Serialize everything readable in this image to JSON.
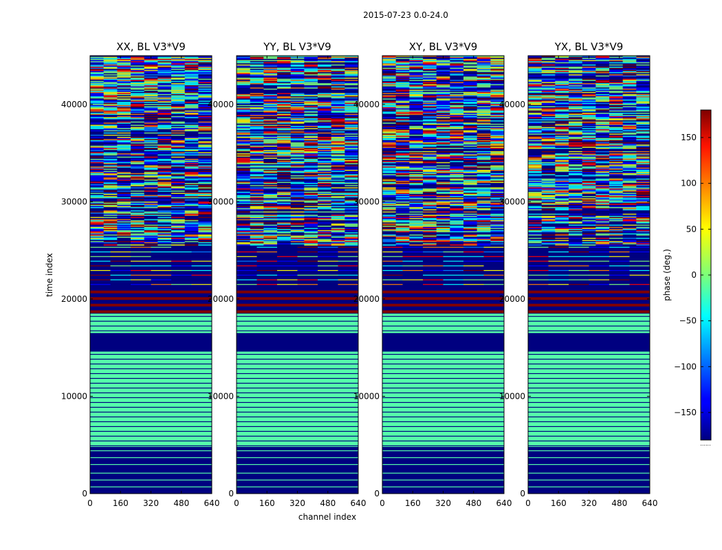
{
  "chart_data": {
    "type": "heatmap",
    "suptitle": "2015-07-23 0.0-24.0",
    "xlabel": "channel index",
    "ylabel": "time index",
    "xlim": [
      0,
      640
    ],
    "ylim": [
      0,
      45000
    ],
    "x_ticks": [
      0,
      160,
      320,
      480,
      640
    ],
    "y_ticks": [
      0,
      10000,
      20000,
      30000,
      40000
    ],
    "panels": [
      {
        "title": "XX, BL V3*V9",
        "hot_rows_start": 0
      },
      {
        "title": "YY, BL V3*V9",
        "hot_rows_start": 0
      },
      {
        "title": "XY, BL V3*V9",
        "hot_rows_start": 0
      },
      {
        "title": "YX, BL V3*V9",
        "hot_rows_start": 0
      }
    ],
    "bands": [
      {
        "from": 0,
        "to": 2500,
        "phase": -180,
        "stripe": -15
      },
      {
        "from": 2500,
        "to": 4800,
        "phase": -180,
        "stripe": -15
      },
      {
        "from": 4800,
        "to": 14600,
        "phase": -15,
        "stripe": -180
      },
      {
        "from": 14600,
        "to": 16500,
        "phase": -180,
        "stripe": -180
      },
      {
        "from": 16500,
        "to": 18500,
        "phase": -15,
        "stripe": -180
      },
      {
        "from": 18500,
        "to": 21200,
        "phase": -180,
        "stripe": 180
      },
      {
        "from": 21200,
        "to": 25500,
        "phase": -180,
        "stripe": "noise"
      },
      {
        "from": 25500,
        "to": 45000,
        "phase": "noise",
        "stripe": -180
      }
    ],
    "colorbar": {
      "label": "phase (deg.)",
      "range": [
        -180,
        180
      ],
      "ticks": [
        -150,
        -100,
        -50,
        0,
        50,
        100,
        150
      ],
      "colormap": "jet",
      "below_marker": "......"
    }
  }
}
